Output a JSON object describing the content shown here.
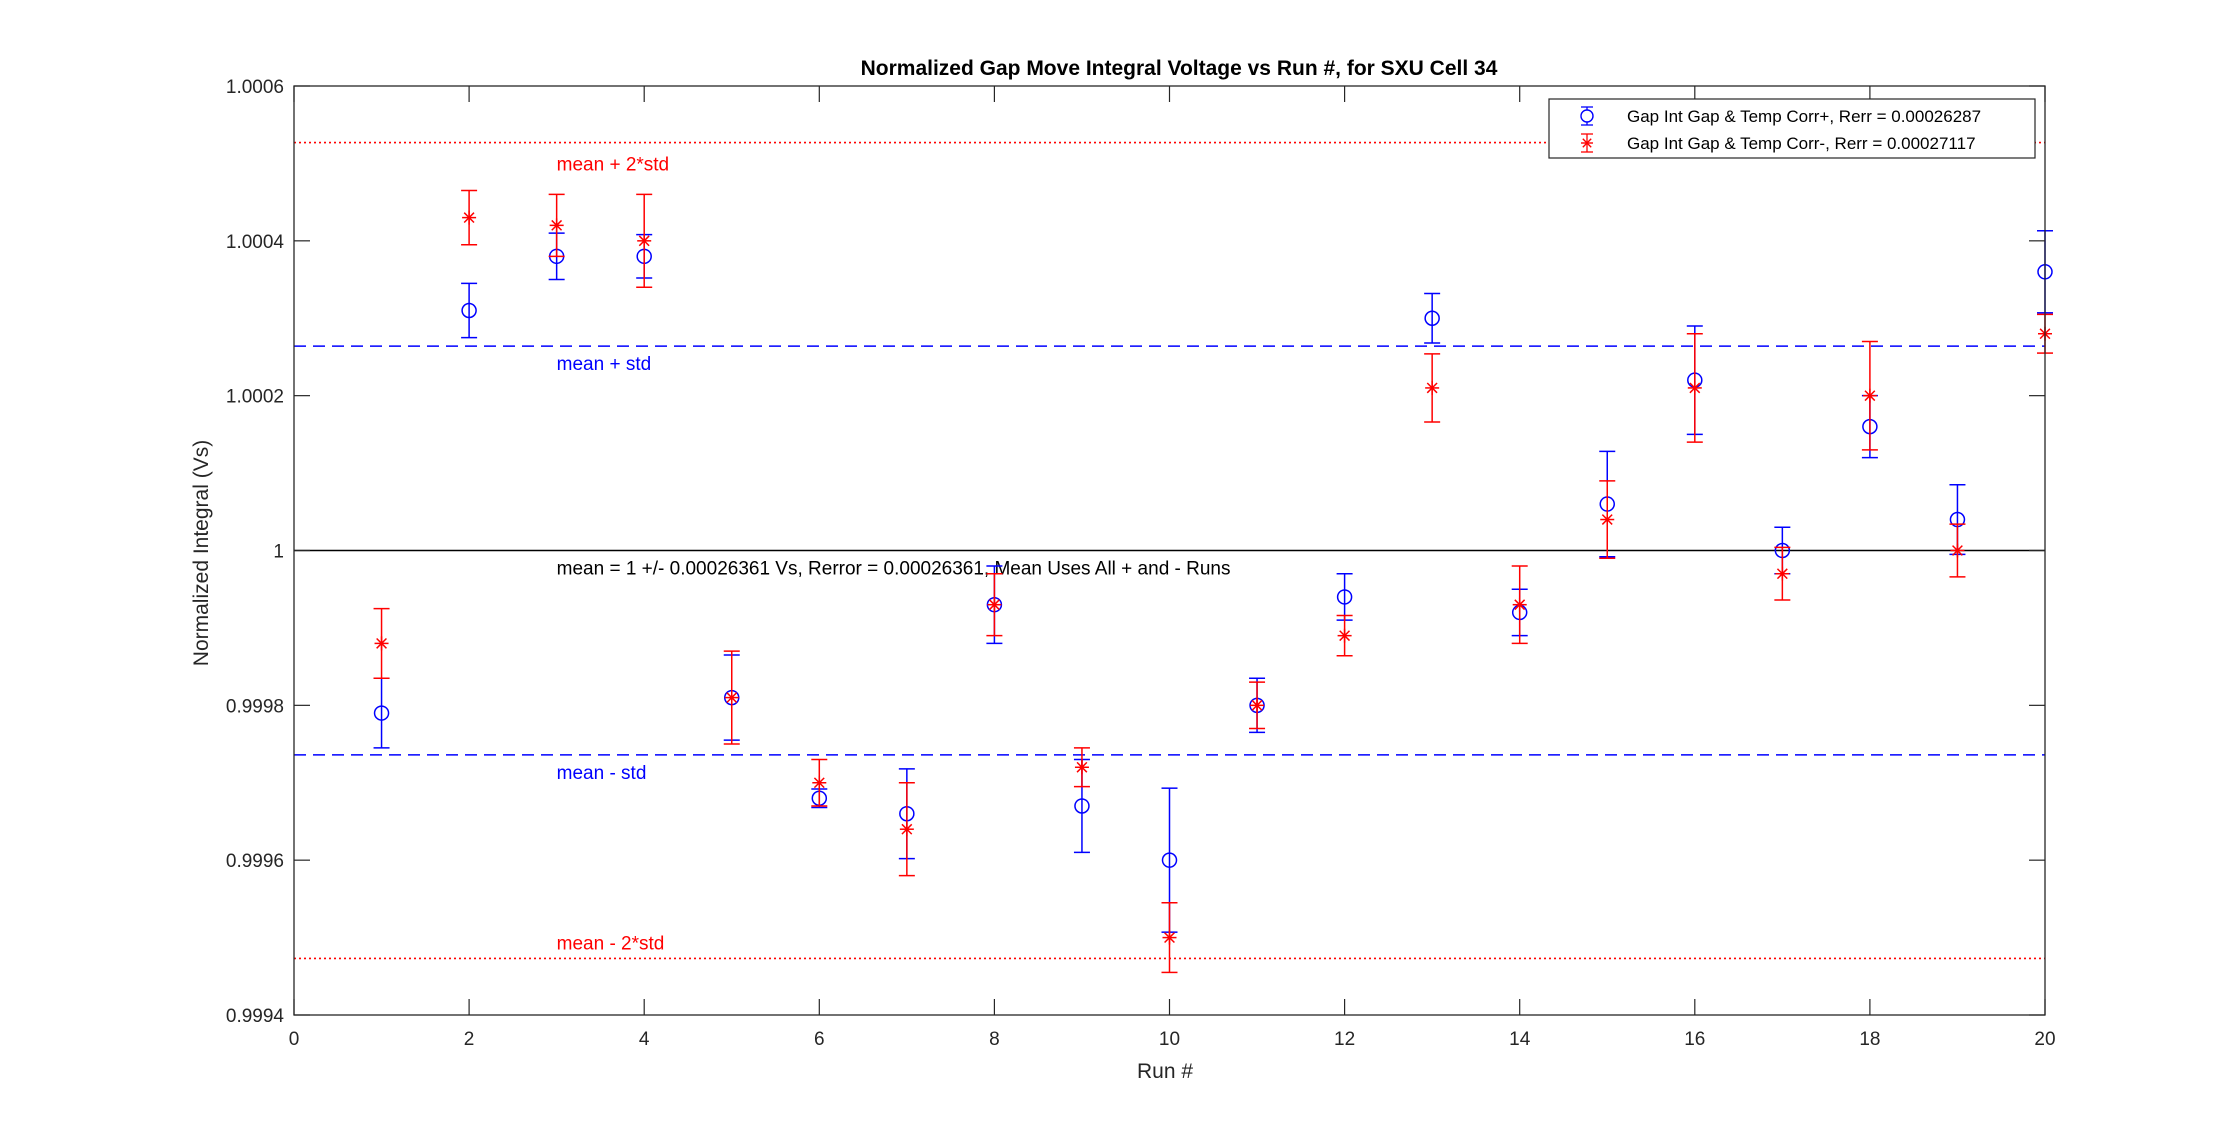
{
  "chart_data": {
    "type": "scatter",
    "title": "Normalized Gap Move Integral Voltage vs Run #, for SXU Cell 34",
    "xlabel": "Run #",
    "ylabel": "Normalized Integral (Vs)",
    "xlim": [
      0,
      20
    ],
    "ylim": [
      0.9994,
      1.0006
    ],
    "xticks": [
      0,
      2,
      4,
      6,
      8,
      10,
      12,
      14,
      16,
      18,
      20
    ],
    "yticks": [
      0.9994,
      0.9996,
      0.9998,
      1,
      1.0002,
      1.0004,
      1.0006
    ],
    "ytick_labels": [
      "0.9994",
      "0.9996",
      "0.9998",
      "1",
      "1.0002",
      "1.0004",
      "1.0006"
    ],
    "grid": false,
    "legend_position": "top-right",
    "series": [
      {
        "name": "Gap Int Gap & Temp Corr+, Rerr = 0.00026287",
        "color": "#0000ff",
        "marker": "circle",
        "x": [
          1,
          2,
          3,
          4,
          5,
          6,
          7,
          8,
          9,
          10,
          11,
          12,
          13,
          14,
          15,
          16,
          17,
          18,
          19,
          20
        ],
        "y": [
          0.99979,
          1.00031,
          1.00038,
          1.00038,
          0.99981,
          0.99968,
          0.99966,
          0.99993,
          0.99967,
          0.9996,
          0.9998,
          0.99994,
          1.0003,
          0.99992,
          1.00006,
          1.00022,
          1.0,
          1.00016,
          1.00004,
          1.00036
        ],
        "err": [
          4.5e-05,
          3.5e-05,
          3e-05,
          2.8e-05,
          5.5e-05,
          1.2e-05,
          5.8e-05,
          5e-05,
          6e-05,
          9.3e-05,
          3.5e-05,
          3e-05,
          3.2e-05,
          3e-05,
          6.8e-05,
          7e-05,
          3e-05,
          4e-05,
          4.5e-05,
          5.3e-05
        ]
      },
      {
        "name": "Gap Int Gap & Temp  Corr-, Rerr = 0.00027117",
        "color": "#ff0000",
        "marker": "asterisk",
        "x": [
          1,
          2,
          3,
          4,
          5,
          6,
          7,
          8,
          9,
          10,
          11,
          12,
          13,
          14,
          15,
          16,
          17,
          18,
          19,
          20
        ],
        "y": [
          0.99988,
          1.00043,
          1.00042,
          1.0004,
          0.99981,
          0.9997,
          0.99964,
          0.99993,
          0.99972,
          0.9995,
          0.9998,
          0.99989,
          1.00021,
          0.99993,
          1.00004,
          1.00021,
          0.99997,
          1.0002,
          1.0,
          1.00028
        ],
        "err": [
          4.5e-05,
          3.5e-05,
          4e-05,
          6e-05,
          6e-05,
          3e-05,
          6e-05,
          4e-05,
          2.5e-05,
          4.5e-05,
          3e-05,
          2.6e-05,
          4.4e-05,
          5e-05,
          5e-05,
          7e-05,
          3.4e-05,
          7e-05,
          3.4e-05,
          2.5e-05
        ]
      }
    ],
    "reference_lines": [
      {
        "y": 1.000527,
        "style": "dotted",
        "color": "#ff0000",
        "label": "mean + 2*std",
        "label_color": "#ff0000"
      },
      {
        "y": 1.000264,
        "style": "dashed",
        "color": "#0000ff",
        "label": "mean + std",
        "label_color": "#0000ff"
      },
      {
        "y": 1.0,
        "style": "solid",
        "color": "#000000",
        "label": "mean = 1 +/- 0.00026361 Vs, Rerror = 0.00026361, Mean Uses All + and - Runs",
        "label_color": "#000000"
      },
      {
        "y": 0.999736,
        "style": "dashed",
        "color": "#0000ff",
        "label": "mean - std",
        "label_color": "#0000ff"
      },
      {
        "y": 0.999473,
        "style": "dotted",
        "color": "#ff0000",
        "label": "mean - 2*std",
        "label_color": "#ff0000"
      }
    ]
  }
}
